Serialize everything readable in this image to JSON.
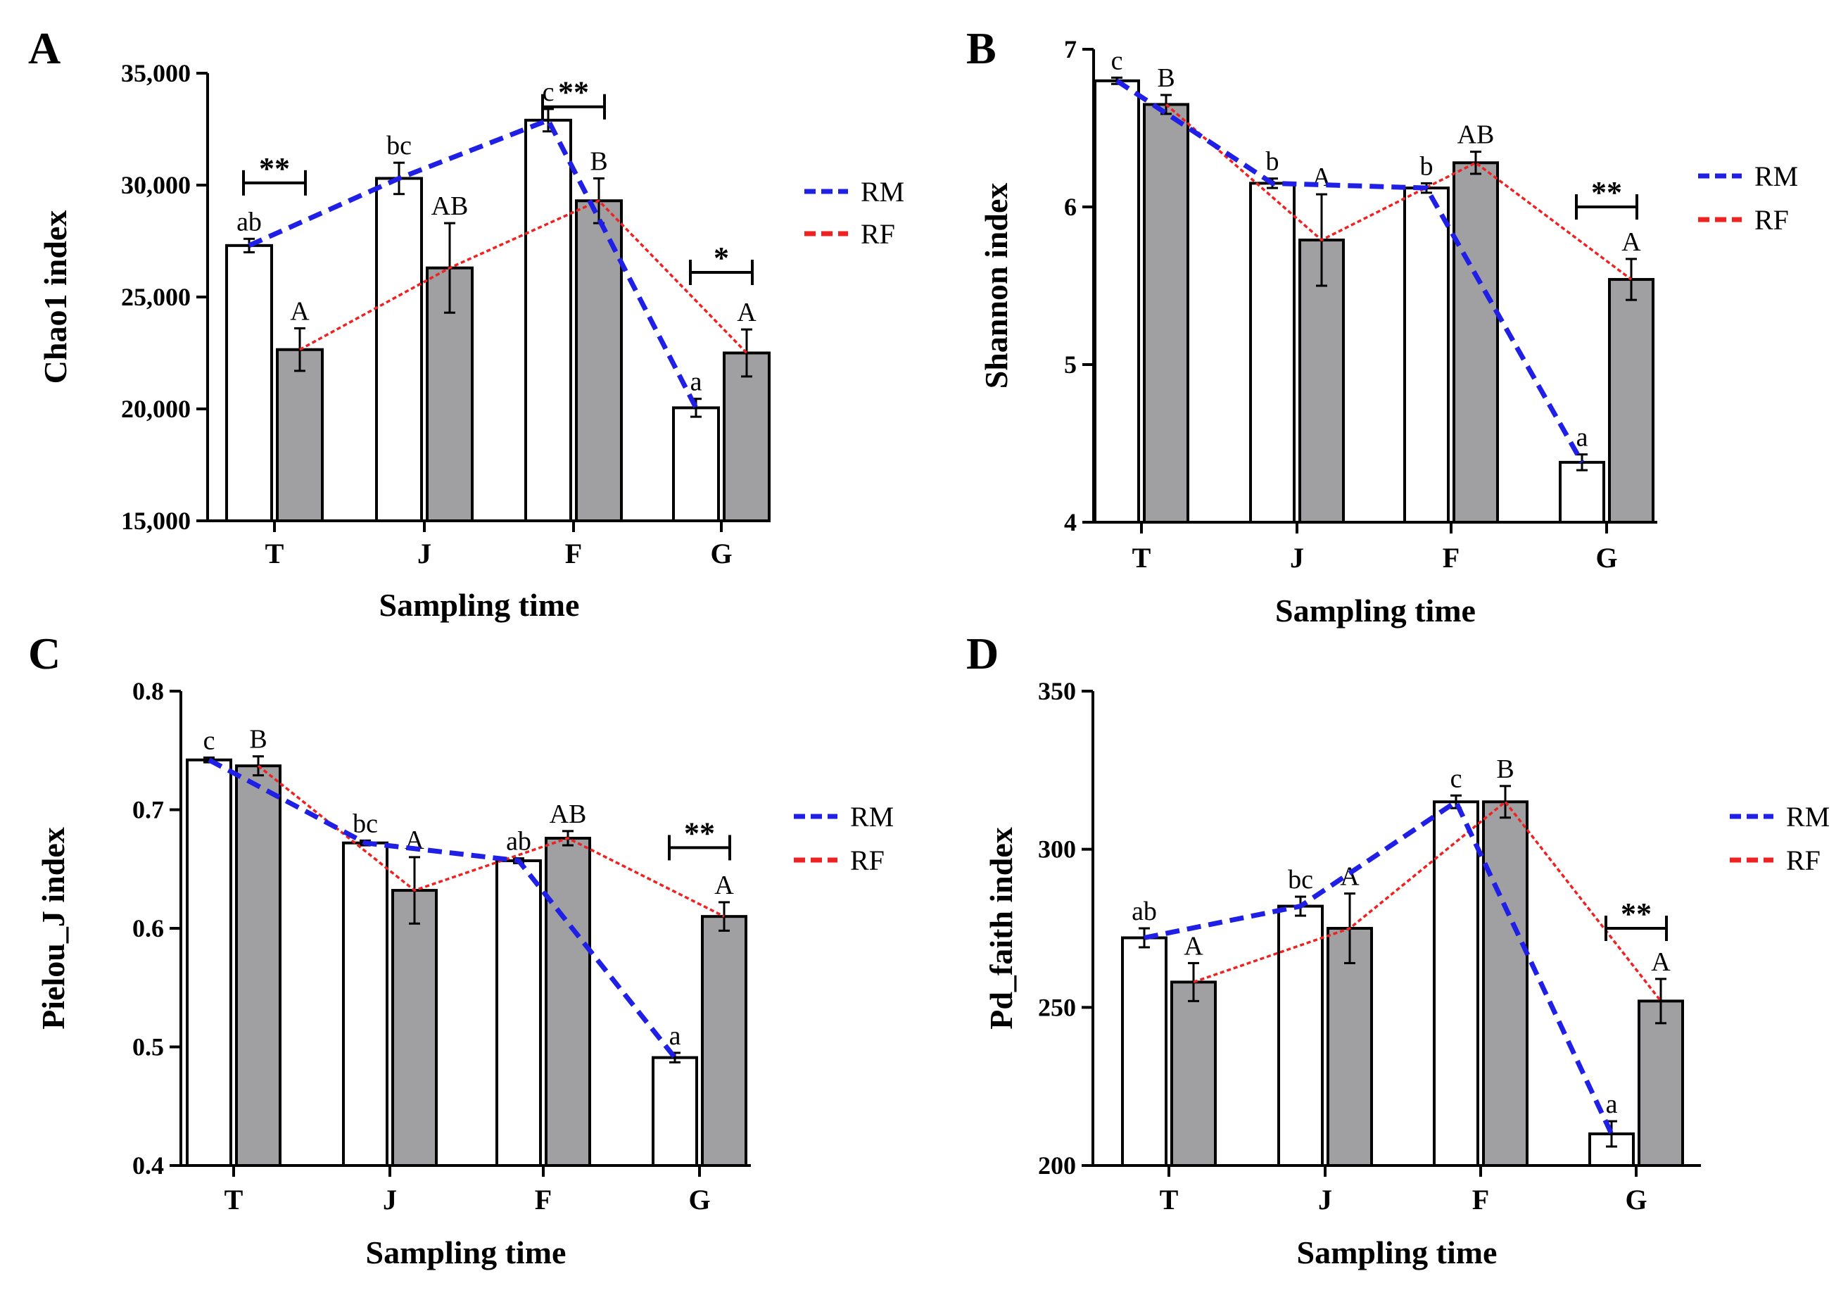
{
  "chart_data": [
    {
      "type": "bar",
      "panel": "A",
      "categories": [
        "T",
        "J",
        "F",
        "G"
      ],
      "series": [
        {
          "name": "RM",
          "values": [
            27300,
            30300,
            32900,
            20050
          ],
          "errors": [
            300,
            700,
            500,
            400
          ],
          "letters": [
            "ab",
            "bc",
            "c",
            "a"
          ],
          "color": "#ffffff"
        },
        {
          "name": "RF",
          "values": [
            22650,
            26300,
            29300,
            22500
          ],
          "errors": [
            950,
            2000,
            1000,
            1050
          ],
          "letters": [
            "A",
            "AB",
            "B",
            "A"
          ],
          "color": "#a0a0a3"
        }
      ],
      "significance": [
        {
          "category": "T",
          "label": "**",
          "value": 30100
        },
        {
          "category": "F",
          "label": "**",
          "value": 33500
        },
        {
          "category": "G",
          "label": "*",
          "value": 26100
        }
      ],
      "title": "",
      "xlabel": "Sampling time",
      "ylabel": "Chao1 index",
      "ylim": [
        15000,
        35000
      ],
      "yticks": [
        15000,
        20000,
        25000,
        30000,
        35000
      ],
      "ytick_labels": [
        "15,000",
        "20,000",
        "25,000",
        "30,000",
        "35,000"
      ],
      "legend_position": "right"
    },
    {
      "type": "bar",
      "panel": "B",
      "categories": [
        "T",
        "J",
        "F",
        "G"
      ],
      "series": [
        {
          "name": "RM",
          "values": [
            6.8,
            6.15,
            6.12,
            4.38
          ],
          "errors": [
            0.02,
            0.03,
            0.03,
            0.05
          ],
          "letters": [
            "c",
            "b",
            "b",
            "a"
          ],
          "color": "#ffffff"
        },
        {
          "name": "RF",
          "values": [
            6.65,
            5.79,
            6.28,
            5.54
          ],
          "errors": [
            0.06,
            0.29,
            0.07,
            0.13
          ],
          "letters": [
            "B",
            "A",
            "AB",
            "A"
          ],
          "color": "#a0a0a3"
        }
      ],
      "significance": [
        {
          "category": "G",
          "label": "**",
          "value": 6.0
        }
      ],
      "title": "",
      "xlabel": "Sampling time",
      "ylabel": "Shannon index",
      "ylim": [
        4,
        7
      ],
      "yticks": [
        4,
        5,
        6,
        7
      ],
      "ytick_labels": [
        "4",
        "5",
        "6",
        "7"
      ],
      "legend_position": "right"
    },
    {
      "type": "bar",
      "panel": "C",
      "categories": [
        "T",
        "J",
        "F",
        "G"
      ],
      "series": [
        {
          "name": "RM",
          "values": [
            0.742,
            0.672,
            0.657,
            0.491
          ],
          "errors": [
            0.002,
            0.002,
            0.002,
            0.004
          ],
          "letters": [
            "c",
            "bc",
            "ab",
            "a"
          ],
          "color": "#ffffff"
        },
        {
          "name": "RF",
          "values": [
            0.737,
            0.632,
            0.676,
            0.61
          ],
          "errors": [
            0.008,
            0.028,
            0.006,
            0.012
          ],
          "letters": [
            "B",
            "A",
            "AB",
            "A"
          ],
          "color": "#a0a0a3"
        }
      ],
      "significance": [
        {
          "category": "G",
          "label": "**",
          "value": 0.668
        }
      ],
      "title": "",
      "xlabel": "Sampling time",
      "ylabel": "Pielou_J index",
      "ylim": [
        0.4,
        0.8
      ],
      "yticks": [
        0.4,
        0.5,
        0.6,
        0.7,
        0.8
      ],
      "ytick_labels": [
        "0.4",
        "0.5",
        "0.6",
        "0.7",
        "0.8"
      ],
      "legend_position": "right"
    },
    {
      "type": "bar",
      "panel": "D",
      "categories": [
        "T",
        "J",
        "F",
        "G"
      ],
      "series": [
        {
          "name": "RM",
          "values": [
            272,
            282,
            315,
            210
          ],
          "errors": [
            3,
            3,
            2,
            4
          ],
          "letters": [
            "ab",
            "bc",
            "c",
            "a"
          ],
          "color": "#ffffff"
        },
        {
          "name": "RF",
          "values": [
            258,
            275,
            315,
            252
          ],
          "errors": [
            6,
            11,
            5,
            7
          ],
          "letters": [
            "A",
            "A",
            "B",
            "A"
          ],
          "color": "#a0a0a3"
        }
      ],
      "significance": [
        {
          "category": "G",
          "label": "**",
          "value": 275
        }
      ],
      "title": "",
      "xlabel": "Sampling time",
      "ylabel": "Pd_faith index",
      "ylim": [
        200,
        350
      ],
      "yticks": [
        200,
        250,
        300,
        350
      ],
      "ytick_labels": [
        "200",
        "250",
        "300",
        "350"
      ],
      "legend_position": "right"
    }
  ],
  "legend": [
    {
      "name": "RM",
      "line_color": "#1f1fe6"
    },
    {
      "name": "RF",
      "line_color": "#ef2121"
    }
  ]
}
